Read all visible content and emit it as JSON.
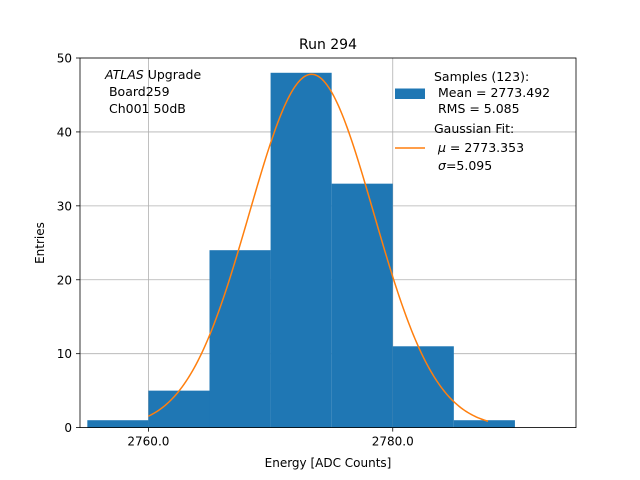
{
  "chart_data": {
    "type": "histogram",
    "title": "Run 294",
    "xlabel": "Energy [ADC Counts]",
    "ylabel": "Entries",
    "xlim": [
      2754.4,
      2795.0
    ],
    "ylim": [
      0,
      50
    ],
    "x_ticks": [
      2760.0,
      2780.0
    ],
    "x_tick_labels": [
      "2760.0",
      "2780.0"
    ],
    "y_ticks": [
      0,
      10,
      20,
      30,
      40,
      50
    ],
    "y_tick_labels": [
      "0",
      "10",
      "20",
      "30",
      "40",
      "50"
    ],
    "grid": true,
    "bins": [
      {
        "x0": 2755.0,
        "x1": 2760.0,
        "count": 1
      },
      {
        "x0": 2760.0,
        "x1": 2765.0,
        "count": 5
      },
      {
        "x0": 2765.0,
        "x1": 2770.0,
        "count": 24
      },
      {
        "x0": 2770.0,
        "x1": 2775.0,
        "count": 48
      },
      {
        "x0": 2775.0,
        "x1": 2780.0,
        "count": 33
      },
      {
        "x0": 2780.0,
        "x1": 2785.0,
        "count": 11
      },
      {
        "x0": 2785.0,
        "x1": 2790.0,
        "count": 1
      }
    ],
    "fit": {
      "type": "gaussian",
      "mu": 2773.353,
      "sigma": 5.095,
      "amplitude": 47.8,
      "x_range": [
        2760.0,
        2787.8
      ]
    },
    "colors": {
      "bars": "#1f77b4",
      "fit": "#ff7f0e",
      "grid": "#b0b0b0"
    },
    "annotation": {
      "italic": "ATLAS",
      "line1_rest": " Upgrade",
      "line2": " Board259",
      "line3": " Ch001 50dB"
    },
    "legend": {
      "position": "top-right",
      "samples": {
        "line1": "Samples (123):",
        "line2": " Mean = 2773.492",
        "line3": " RMS = 5.085"
      },
      "fit": {
        "line1": "Gaussian Fit:",
        "line2_symbol": "μ",
        "line2_rest": " = 2773.353",
        "line3_symbol": "σ",
        "line3_rest": "=5.095"
      }
    }
  }
}
